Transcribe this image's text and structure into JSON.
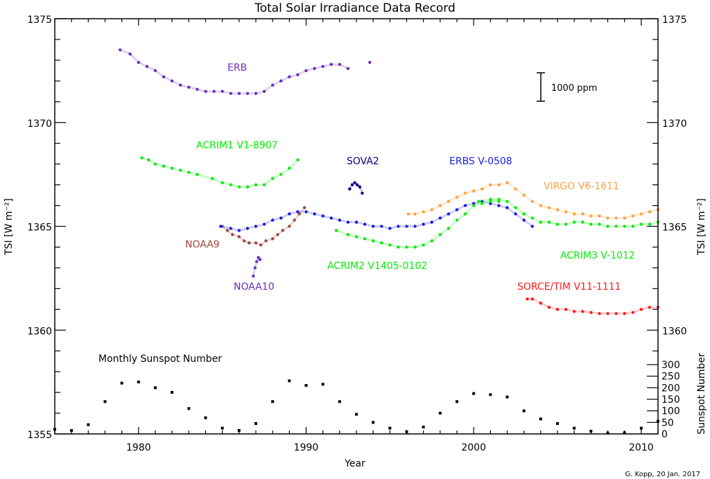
{
  "chart_data": {
    "type": "scatter",
    "title": "Total Solar Irradiance Data Record",
    "xlabel": "Year",
    "ylabel": "TSI [W m⁻²]",
    "y2label": "Sunspot Number",
    "xlim": [
      1975,
      2011
    ],
    "ylim": [
      1355,
      1375
    ],
    "y2lim": [
      0,
      300
    ],
    "x_tick_labels": [
      "1980",
      "1990",
      "2000",
      "2010"
    ],
    "y_tick_labels": [
      "1355",
      "1360",
      "1365",
      "1370",
      "1375"
    ],
    "y2_tick_labels": [
      "0",
      "50",
      "100",
      "150",
      "200",
      "250",
      "300"
    ],
    "grid": false,
    "scale_bar_label": "1000 ppm",
    "credit": "G. Kopp, 20 Jan. 2017",
    "series": [
      {
        "name": "ERB",
        "color": "#6a2dbf",
        "x": [
          1978.9,
          1979.5,
          1980,
          1980.5,
          1981,
          1981.5,
          1982,
          1982.5,
          1983,
          1983.5,
          1984,
          1984.5,
          1985,
          1985.5,
          1986,
          1986.5,
          1987,
          1987.5,
          1988,
          1988.5,
          1989,
          1989.5,
          1990,
          1990.5,
          1991,
          1991.5,
          1992,
          1992.5,
          1993.8
        ],
        "y": [
          1373.5,
          1373.3,
          1372.9,
          1372.7,
          1372.5,
          1372.2,
          1372.0,
          1371.8,
          1371.7,
          1371.6,
          1371.5,
          1371.5,
          1371.5,
          1371.4,
          1371.4,
          1371.4,
          1371.4,
          1371.5,
          1371.8,
          1372.0,
          1372.2,
          1372.3,
          1372.5,
          1372.6,
          1372.7,
          1372.8,
          1372.8,
          1372.6,
          1372.9
        ]
      },
      {
        "name": "ACRIM1 V1-8907",
        "color": "#00ee00",
        "x": [
          1980.2,
          1980.6,
          1981,
          1981.5,
          1982,
          1982.5,
          1983,
          1983.5,
          1984.4,
          1985,
          1985.5,
          1986,
          1986.5,
          1987,
          1987.5,
          1988,
          1988.5,
          1989,
          1989.5
        ],
        "y": [
          1368.3,
          1368.2,
          1368.0,
          1367.9,
          1367.8,
          1367.7,
          1367.6,
          1367.5,
          1367.3,
          1367.1,
          1367.0,
          1366.9,
          1366.9,
          1367.0,
          1367.0,
          1367.3,
          1367.5,
          1367.8,
          1368.2
        ]
      },
      {
        "name": "NOAA9",
        "color": "#a0463a",
        "x": [
          1985,
          1985.3,
          1985.6,
          1986,
          1986.3,
          1986.6,
          1987,
          1987.3,
          1987.6,
          1988,
          1988.3,
          1988.6,
          1989,
          1989.3,
          1989.6,
          1989.9
        ],
        "y": [
          1365.0,
          1364.8,
          1364.6,
          1364.5,
          1364.3,
          1364.2,
          1364.2,
          1364.1,
          1364.3,
          1364.4,
          1364.6,
          1364.8,
          1365.0,
          1365.3,
          1365.6,
          1365.9
        ]
      },
      {
        "name": "NOAA10",
        "color": "#6a2dbf",
        "x": [
          1986.85,
          1986.95,
          1987.05,
          1987.15,
          1987.25
        ],
        "y": [
          1362.6,
          1363.0,
          1363.3,
          1363.5,
          1363.4
        ]
      },
      {
        "name": "ERBS V-0508",
        "color": "#1a1ae6",
        "x": [
          1984.9,
          1985.5,
          1986,
          1986.5,
          1987,
          1987.5,
          1988,
          1988.5,
          1989,
          1989.5,
          1990,
          1990.5,
          1991,
          1991.5,
          1992,
          1992.5,
          1993,
          1993.5,
          1994,
          1994.5,
          1995,
          1995.5,
          1996,
          1996.5,
          1997,
          1997.5,
          1998,
          1998.5,
          1999,
          1999.5,
          2000,
          2000.5,
          2001,
          2001.5,
          2002,
          2002.5,
          2003,
          2003.5
        ],
        "y": [
          1365.0,
          1364.9,
          1364.8,
          1364.9,
          1365.0,
          1365.1,
          1365.3,
          1365.4,
          1365.6,
          1365.7,
          1365.7,
          1365.6,
          1365.5,
          1365.4,
          1365.3,
          1365.2,
          1365.2,
          1365.1,
          1365.0,
          1365.0,
          1364.9,
          1365.0,
          1365.0,
          1365.0,
          1365.1,
          1365.2,
          1365.4,
          1365.6,
          1365.8,
          1366.0,
          1366.1,
          1366.2,
          1366.1,
          1366.0,
          1365.9,
          1365.6,
          1365.3,
          1365.0
        ]
      },
      {
        "name": "SOVA2",
        "color": "#000080",
        "x": [
          1992.6,
          1992.75,
          1992.9,
          1993.05,
          1993.2,
          1993.35
        ],
        "y": [
          1366.8,
          1367.0,
          1367.1,
          1367.0,
          1366.9,
          1366.6
        ]
      },
      {
        "name": "ACRIM2 V1405-0102",
        "color": "#00ee00",
        "x": [
          1991.8,
          1992.5,
          1993,
          1993.5,
          1994,
          1994.5,
          1995,
          1995.5,
          1996,
          1996.5,
          1997,
          1997.5,
          1998,
          1998.5,
          1999,
          1999.5,
          2000,
          2000.5,
          2001,
          2001.5
        ],
        "y": [
          1364.8,
          1364.6,
          1364.5,
          1364.4,
          1364.3,
          1364.2,
          1364.1,
          1364.0,
          1364.0,
          1364.0,
          1364.1,
          1364.3,
          1364.6,
          1364.9,
          1365.3,
          1365.6,
          1366.0,
          1366.1,
          1366.2,
          1366.2
        ]
      },
      {
        "name": "VIRGO V6-1611",
        "color": "#ffa040",
        "x": [
          1996.1,
          1996.5,
          1997,
          1997.5,
          1998,
          1998.5,
          1999,
          1999.5,
          2000,
          2000.5,
          2001,
          2001.5,
          2002,
          2002.5,
          2003,
          2003.5,
          2004,
          2004.5,
          2005,
          2005.5,
          2006,
          2006.5,
          2007,
          2007.5,
          2008,
          2008.5,
          2009,
          2009.5,
          2010,
          2010.5,
          2011
        ],
        "y": [
          1365.6,
          1365.6,
          1365.7,
          1365.8,
          1366.0,
          1366.2,
          1366.4,
          1366.6,
          1366.7,
          1366.8,
          1367.0,
          1367.0,
          1367.1,
          1366.8,
          1366.5,
          1366.2,
          1366.0,
          1365.9,
          1365.8,
          1365.7,
          1365.6,
          1365.6,
          1365.5,
          1365.5,
          1365.4,
          1365.4,
          1365.4,
          1365.5,
          1365.6,
          1365.7,
          1365.8
        ]
      },
      {
        "name": "ACRIM3 V-1012",
        "color": "#00ee00",
        "x": [
          2000.3,
          2001,
          2001.5,
          2002,
          2002.5,
          2003,
          2003.5,
          2004,
          2004.5,
          2005,
          2005.5,
          2006,
          2006.5,
          2007,
          2007.5,
          2008,
          2008.5,
          2009,
          2009.5,
          2010,
          2010.5,
          2011
        ],
        "y": [
          1366.2,
          1366.3,
          1366.3,
          1366.2,
          1365.9,
          1365.6,
          1365.4,
          1365.2,
          1365.2,
          1365.1,
          1365.1,
          1365.2,
          1365.2,
          1365.1,
          1365.1,
          1365.0,
          1365.0,
          1365.0,
          1365.0,
          1365.1,
          1365.1,
          1365.2
        ]
      },
      {
        "name": "SORCE/TIM V11-1111",
        "color": "#ff1a1a",
        "x": [
          2003.2,
          2003.5,
          2004,
          2004.5,
          2005,
          2005.5,
          2006,
          2006.5,
          2007,
          2007.5,
          2008,
          2008.5,
          2009,
          2009.5,
          2010,
          2010.5,
          2011
        ],
        "y": [
          1361.5,
          1361.5,
          1361.3,
          1361.1,
          1361.0,
          1361.0,
          1360.9,
          1360.9,
          1360.85,
          1360.8,
          1360.8,
          1360.8,
          1360.8,
          1360.85,
          1361.0,
          1361.1,
          1361.1
        ]
      },
      {
        "name": "Monthly Sunspot Number",
        "color": "#000000",
        "axis": "right",
        "x": [
          1975,
          1976,
          1977,
          1978,
          1979,
          1980,
          1981,
          1982,
          1983,
          1984,
          1985,
          1986,
          1987,
          1988,
          1989,
          1990,
          1991,
          1992,
          1993,
          1994,
          1995,
          1996,
          1997,
          1998,
          1999,
          2000,
          2001,
          2002,
          2003,
          2004,
          2005,
          2006,
          2007,
          2008,
          2009,
          2010,
          2011
        ],
        "y": [
          20,
          15,
          40,
          140,
          220,
          225,
          200,
          180,
          110,
          70,
          25,
          15,
          45,
          140,
          230,
          210,
          215,
          140,
          85,
          50,
          25,
          10,
          30,
          90,
          140,
          175,
          170,
          160,
          100,
          65,
          45,
          25,
          12,
          4,
          5,
          25,
          55
        ]
      }
    ]
  }
}
